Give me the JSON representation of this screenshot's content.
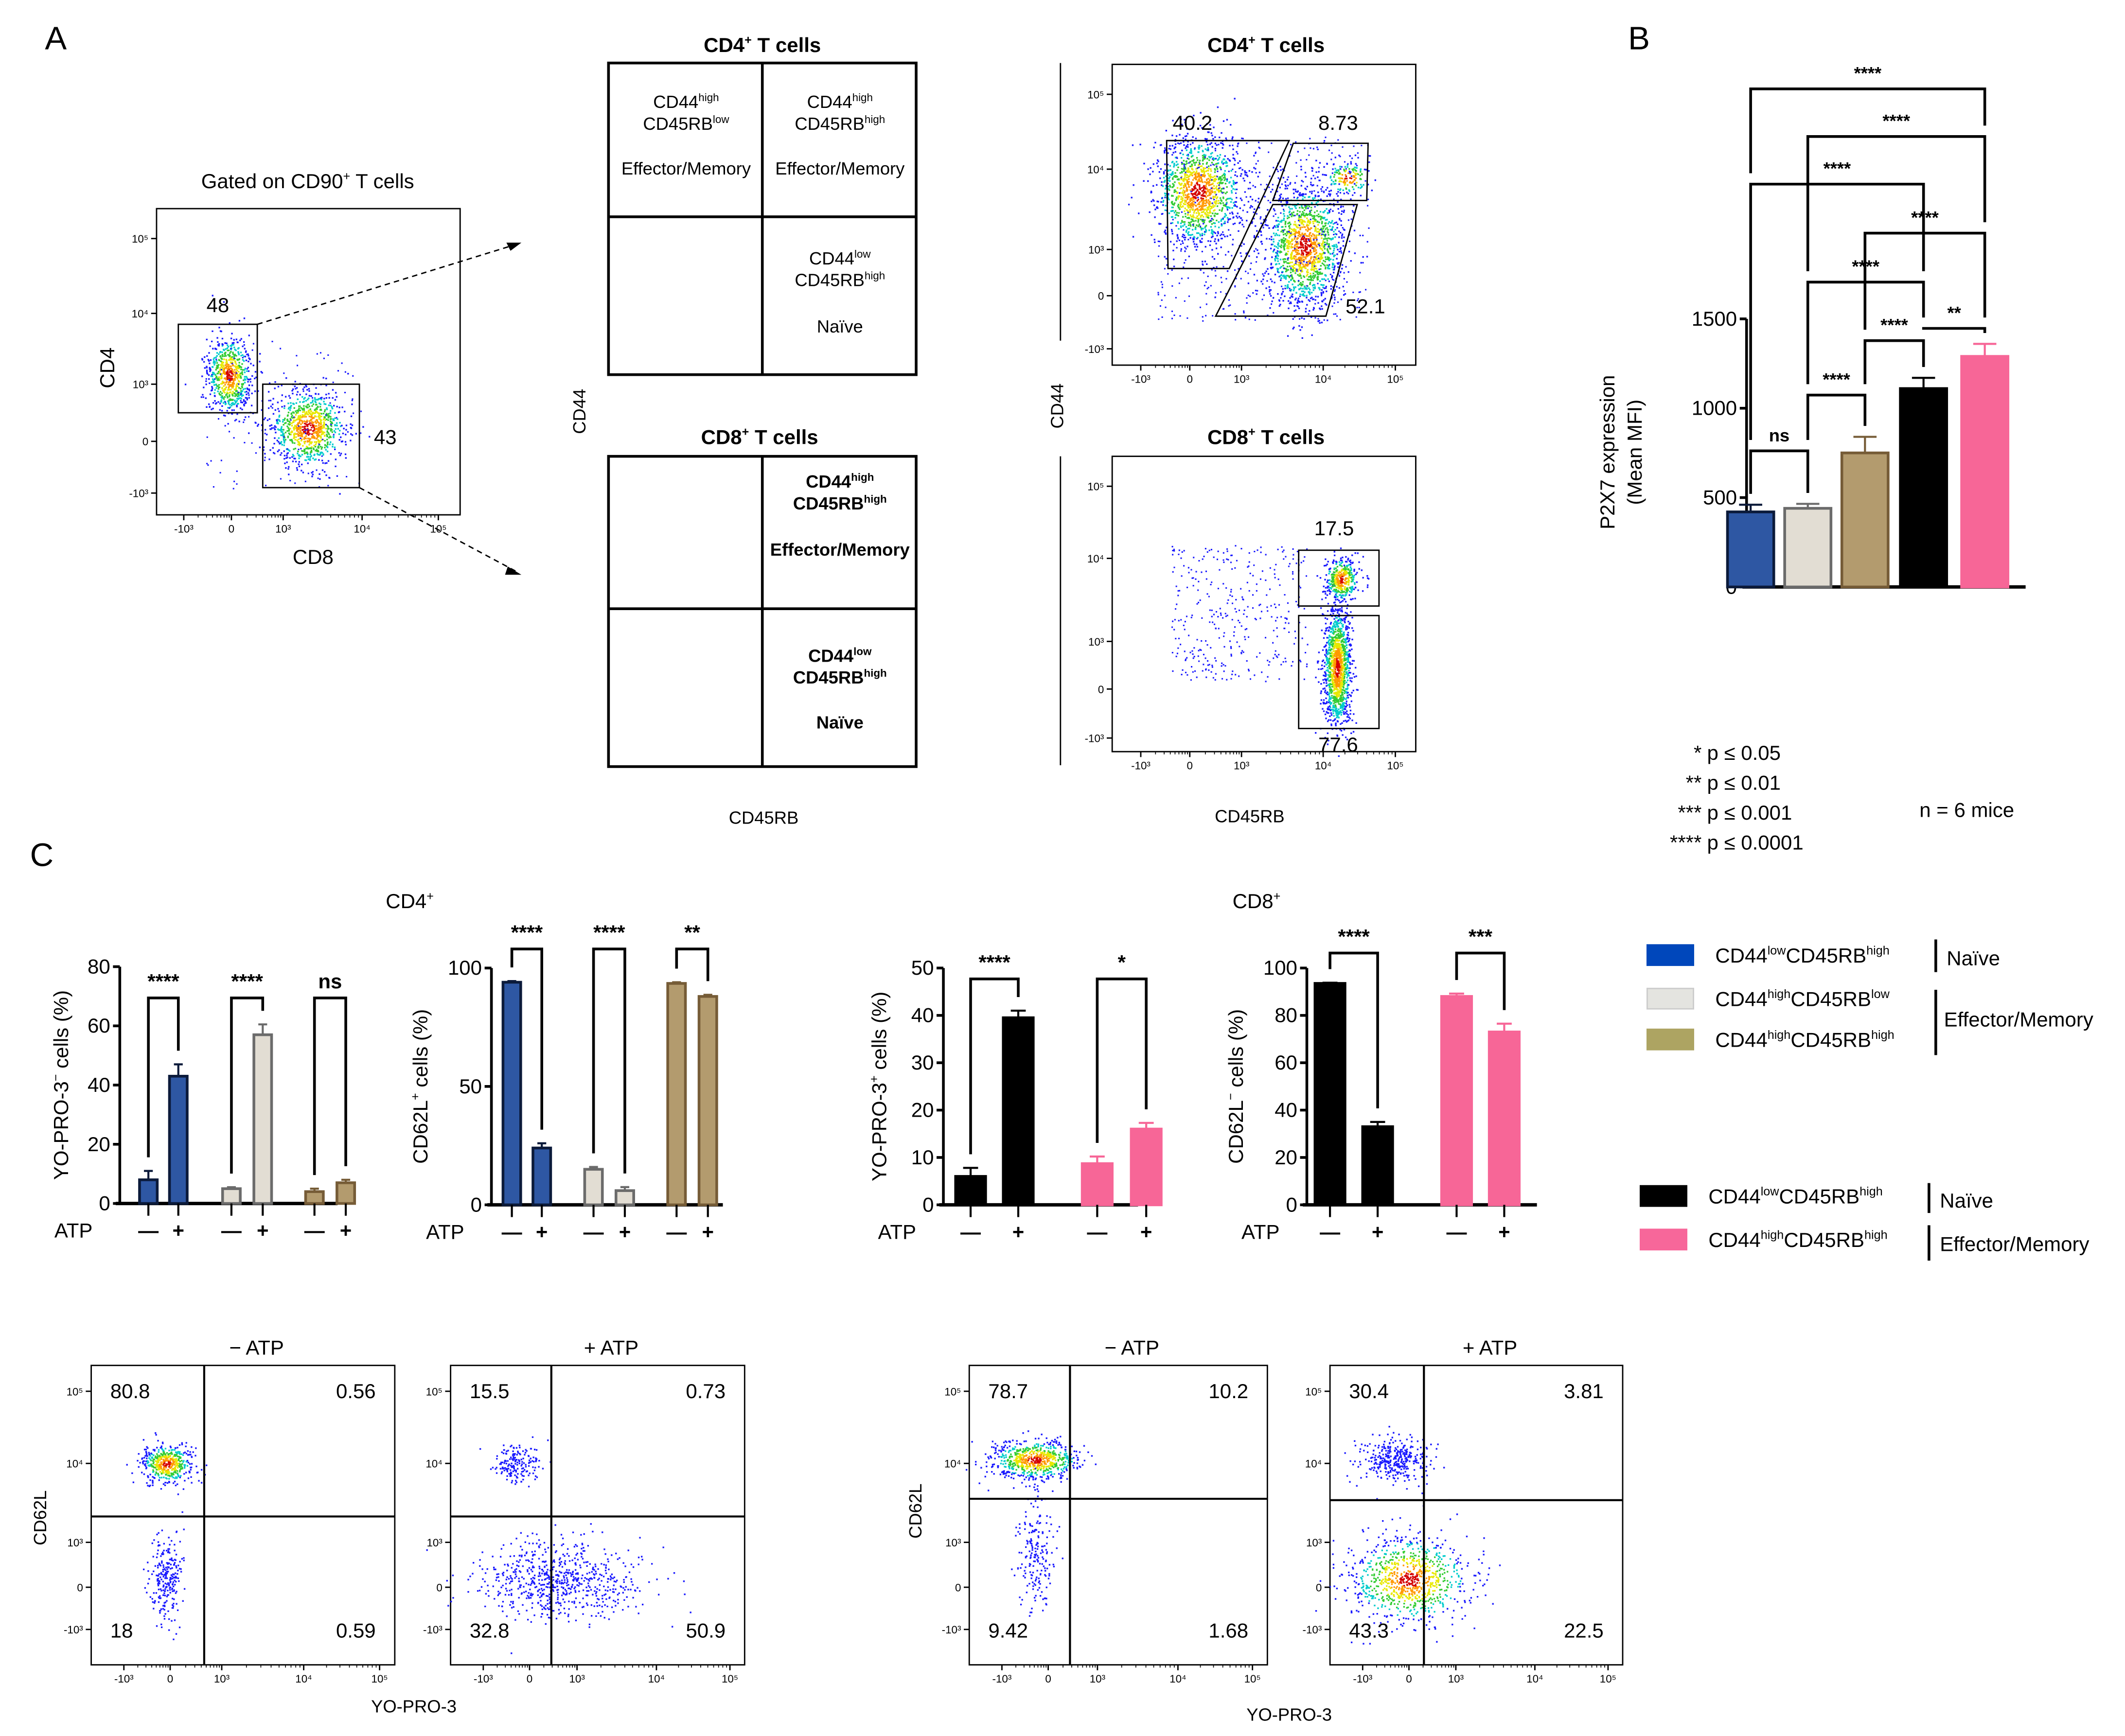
{
  "panel_labels": {
    "a": "A",
    "b": "B",
    "c": "C"
  },
  "panelA": {
    "gating": {
      "title": "Gated on CD90",
      "title_sup": "+",
      "title_rest": " T cells",
      "ylabel": "CD4",
      "xlabel": "CD8",
      "gate_cd4": "48",
      "gate_cd8": "43"
    },
    "schematic": {
      "ylabel": "CD44",
      "xlabel": "CD45RB",
      "cd4_title": "CD4",
      "cd8_title": "CD8",
      "title_sup": "+",
      "title_rest": " T cells",
      "cd44": "CD44",
      "cd45rb": "CD45RB",
      "high": "high",
      "low": "low",
      "effmem": "Effector/Memory",
      "naive": "Naïve"
    },
    "flow": {
      "ylabel": "CD44",
      "xlabel": "CD45RB",
      "cd4_gates": [
        "40.2",
        "8.73",
        "52.1"
      ],
      "cd8_gates": [
        "17.5",
        "77.6"
      ]
    }
  },
  "flow_ticks": [
    "-10³",
    "0",
    "10³",
    "10⁴",
    "10⁵"
  ],
  "panelB": {
    "pvalue_legend": [
      {
        "stars": "*",
        "text": "p ≤ 0.05"
      },
      {
        "stars": "**",
        "text": "p ≤ 0.01"
      },
      {
        "stars": "***",
        "text": "p ≤ 0.001"
      },
      {
        "stars": "****",
        "text": "p ≤ 0.0001"
      }
    ],
    "n_text": "n = 6 mice"
  },
  "panelC": {
    "cd4_title": "CD4",
    "cd8_title": "CD8",
    "sup": "+",
    "atp": "ATP",
    "minus": "—",
    "plus": "+",
    "legend_cd4": [
      {
        "base1": "CD44",
        "sup1": "low",
        "base2": "CD45RB",
        "sup2": "high",
        "color": "#0047bb"
      },
      {
        "base1": "CD44",
        "sup1": "high",
        "base2": "CD45RB",
        "sup2": "low",
        "color": "#e4e4e0"
      },
      {
        "base1": "CD44",
        "sup1": "high",
        "base2": "CD45RB",
        "sup2": "high",
        "color": "#ada462"
      }
    ],
    "legend_cd4_groups": [
      "Naïve",
      "Effector/Memory"
    ],
    "legend_cd8": [
      {
        "base1": "CD44",
        "sup1": "low",
        "base2": "CD45RB",
        "sup2": "high",
        "color": "#000000"
      },
      {
        "base1": "CD44",
        "sup1": "high",
        "base2": "CD45RB",
        "sup2": "high",
        "color": "#f7679a"
      }
    ],
    "legend_cd8_groups": [
      "Naïve",
      "Effector/Memory"
    ],
    "flow": {
      "minus_atp": "− ATP",
      "plus_atp": "+ ATP",
      "ylabel": "CD62L",
      "xlabel": "YO-PRO-3",
      "cd4_minus": [
        "80.8",
        "0.56",
        "18",
        "0.59"
      ],
      "cd4_plus": [
        "15.5",
        "0.73",
        "32.8",
        "50.9"
      ],
      "cd8_minus": [
        "78.7",
        "10.2",
        "9.42",
        "1.68"
      ],
      "cd8_plus": [
        "30.4",
        "3.81",
        "43.3",
        "22.5"
      ]
    }
  },
  "chart_data": [
    {
      "type": "bar",
      "title": "",
      "ylabel": "P2X7 expression",
      "ylabel2": "(Mean MFI)",
      "ylim": [
        0,
        1500
      ],
      "yticks": [
        "0",
        "500",
        "1000",
        "1500"
      ],
      "ytick_values": [
        0,
        500,
        1000,
        1500
      ],
      "values": [
        420,
        440,
        750,
        1110,
        1290
      ],
      "errors": [
        40,
        25,
        90,
        60,
        70
      ],
      "colors": [
        "#2e57a3",
        "#e2ddd3",
        "#b39b6e",
        "#000000",
        "#f76697"
      ],
      "edges": [
        "#0b1a3a",
        "#6b6b6b",
        "#765c37",
        "#000000",
        "#f76697"
      ],
      "comparisons": [
        {
          "a": 0,
          "b": 1,
          "label": "ns"
        },
        {
          "a": 1,
          "b": 2,
          "label": "****"
        },
        {
          "a": 2,
          "b": 3,
          "label": "****"
        },
        {
          "a": 3,
          "b": 4,
          "label": "**"
        },
        {
          "a": 1,
          "b": 3,
          "label": "****"
        },
        {
          "a": 2,
          "b": 4,
          "label": "****"
        },
        {
          "a": 0,
          "b": 3,
          "label": "****"
        },
        {
          "a": 1,
          "b": 4,
          "label": "****"
        },
        {
          "a": 0,
          "b": 4,
          "label": "****"
        }
      ]
    },
    {
      "type": "bar",
      "title": "CD4+",
      "ylabel": "YO-PRO-3",
      "ylabel_sup": "−",
      "ylabel_rest": " cells (%)",
      "ylim": [
        0,
        80
      ],
      "yticks": [
        "0",
        "20",
        "40",
        "60",
        "80"
      ],
      "ytick_values": [
        0,
        20,
        40,
        60,
        80
      ],
      "groups": [
        {
          "values": [
            8,
            43
          ],
          "errors": [
            3,
            4
          ],
          "color": "#2e57a3",
          "edge": "#0b1a3a",
          "sig": "****"
        },
        {
          "values": [
            5,
            57
          ],
          "errors": [
            0.5,
            3.5
          ],
          "color": "#e2ddd3",
          "edge": "#6b6b6b",
          "sig": "****"
        },
        {
          "values": [
            4,
            7
          ],
          "errors": [
            1,
            1
          ],
          "color": "#b39b6e",
          "edge": "#765c37",
          "sig": "ns"
        }
      ]
    },
    {
      "type": "bar",
      "title": "CD4+",
      "ylabel": "CD62L",
      "ylabel_sup": "+",
      "ylabel_rest": " cells (%)",
      "ylim": [
        0,
        100
      ],
      "yticks": [
        "0",
        "50",
        "100"
      ],
      "ytick_values": [
        0,
        50,
        100
      ],
      "groups": [
        {
          "values": [
            94,
            24
          ],
          "errors": [
            0.5,
            2
          ],
          "color": "#2e57a3",
          "edge": "#0b1a3a",
          "sig": "****"
        },
        {
          "values": [
            15,
            6
          ],
          "errors": [
            1,
            1.5
          ],
          "color": "#e2ddd3",
          "edge": "#6b6b6b",
          "sig": "****"
        },
        {
          "values": [
            93.5,
            88
          ],
          "errors": [
            0.5,
            0.7
          ],
          "color": "#b39b6e",
          "edge": "#765c37",
          "sig": "**"
        }
      ]
    },
    {
      "type": "bar",
      "title": "CD8+",
      "ylabel": "YO-PRO-3",
      "ylabel_sup": "+",
      "ylabel_rest": " cells (%)",
      "ylim": [
        0,
        50
      ],
      "yticks": [
        "0",
        "10",
        "20",
        "30",
        "40",
        "50"
      ],
      "ytick_values": [
        0,
        10,
        20,
        30,
        40,
        50
      ],
      "groups": [
        {
          "values": [
            6,
            39.5
          ],
          "errors": [
            1.8,
            1.5
          ],
          "color": "#000000",
          "edge": "#000000",
          "sig": "****"
        },
        {
          "values": [
            8.7,
            16
          ],
          "errors": [
            1.5,
            1.3
          ],
          "color": "#f76697",
          "edge": "#f76697",
          "sig": "*"
        }
      ]
    },
    {
      "type": "bar",
      "title": "CD8+",
      "ylabel": "CD62L",
      "ylabel_sup": "−",
      "ylabel_rest": " cells (%)",
      "ylim": [
        0,
        100
      ],
      "yticks": [
        "0",
        "20",
        "40",
        "60",
        "80",
        "100"
      ],
      "ytick_values": [
        0,
        20,
        40,
        60,
        80,
        100
      ],
      "groups": [
        {
          "values": [
            93.5,
            33
          ],
          "errors": [
            0.3,
            2
          ],
          "color": "#000000",
          "edge": "#000000",
          "sig": "****"
        },
        {
          "values": [
            88,
            73
          ],
          "errors": [
            1.2,
            3.5
          ],
          "color": "#f76697",
          "edge": "#f76697",
          "sig": "***"
        }
      ]
    }
  ]
}
